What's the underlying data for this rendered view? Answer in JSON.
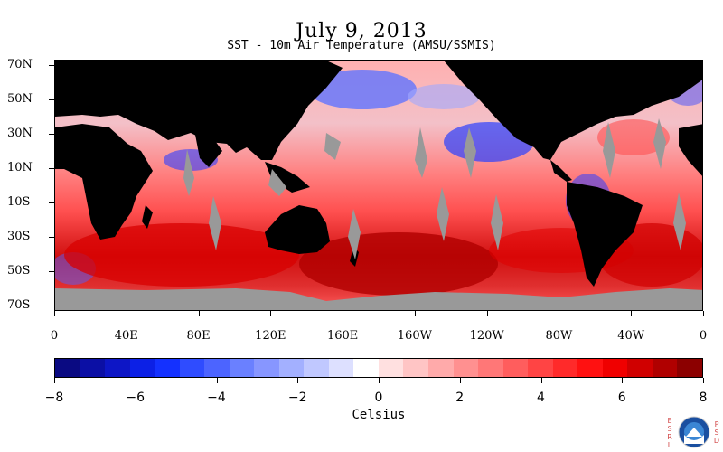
{
  "title": "July 9, 2013",
  "subtitle": "SST - 10m Air Temperature (AMSU/SSMIS)",
  "map": {
    "y_axis_labels": [
      "70N",
      "50N",
      "30N",
      "10N",
      "10S",
      "30S",
      "50S",
      "70S"
    ],
    "x_axis_labels": [
      "0",
      "40E",
      "80E",
      "120E",
      "160E",
      "160W",
      "120W",
      "80W",
      "40W",
      "0"
    ]
  },
  "colorbar": {
    "tick_labels": [
      "−8",
      "−6",
      "−4",
      "−2",
      "0",
      "2",
      "4",
      "6",
      "8"
    ],
    "unit_label": "Celsius",
    "range": [
      -8,
      8
    ],
    "colors": [
      "#0a0a82",
      "#0b0fa5",
      "#0d16c6",
      "#0c20e6",
      "#1431ff",
      "#2f4cff",
      "#4c64ff",
      "#6a80ff",
      "#8796ff",
      "#a3b0ff",
      "#c0c8ff",
      "#dde0ff",
      "#ffffff",
      "#ffe0e0",
      "#ffc5c5",
      "#ffaaaa",
      "#ff9090",
      "#ff7777",
      "#ff5d5d",
      "#ff4444",
      "#ff2a2a",
      "#ff1111",
      "#f00000",
      "#d00000",
      "#b00000",
      "#8c0000"
    ]
  },
  "logo": {
    "left_text": "ESRL",
    "right_text": "PSD",
    "center_text": "NOAA"
  },
  "colors": {
    "land": "#000000",
    "ice": "#999999",
    "warm": "#ff2a2a",
    "cool": "#3550ff"
  }
}
